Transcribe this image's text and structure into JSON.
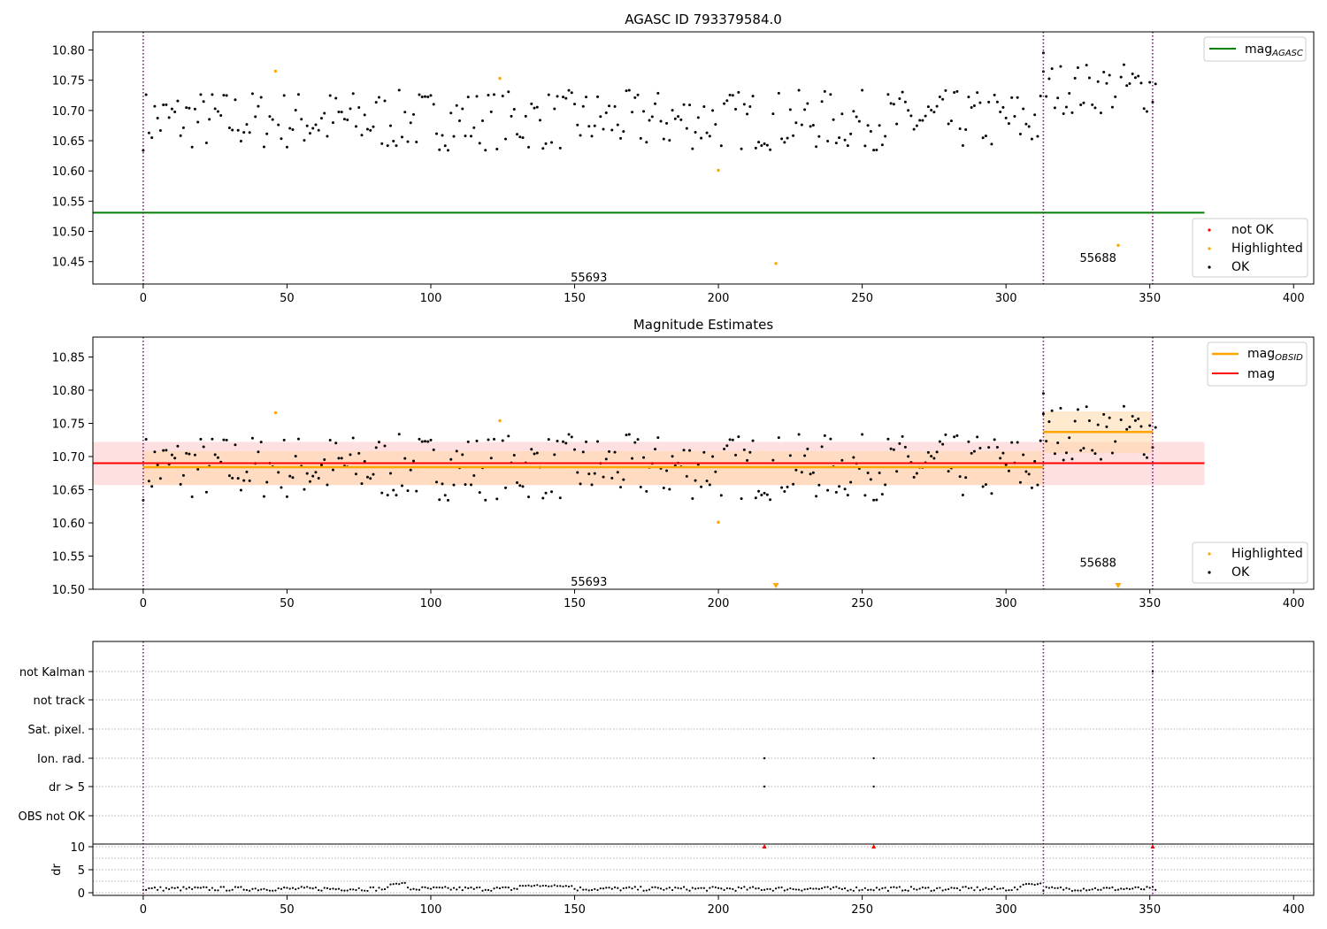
{
  "chart_data": [
    {
      "id": "agasc",
      "type": "scatter",
      "title": "AGASC ID 793379584.0",
      "xlim": [
        -17.5,
        407
      ],
      "ylim": [
        10.413,
        10.83
      ],
      "x_ticks": [
        0,
        50,
        100,
        150,
        200,
        250,
        300,
        350,
        400
      ],
      "y_ticks": [
        10.45,
        10.5,
        10.55,
        10.6,
        10.65,
        10.7,
        10.75,
        10.8
      ],
      "y_tick_labels": [
        "10.45",
        "10.50",
        "10.55",
        "10.60",
        "10.65",
        "10.70",
        "10.75",
        "10.80"
      ],
      "grid": false,
      "obsid_boundaries": [
        0,
        313,
        351
      ],
      "obsid_labels": [
        {
          "text": "55693",
          "x": 155,
          "y": 10.425
        },
        {
          "text": "55688",
          "x": 332,
          "y": 10.457
        }
      ],
      "lines": [
        {
          "name": "mag_AGASC",
          "label_main": "mag",
          "label_sub": "AGASC",
          "y": 10.531,
          "x": [
            -17.5,
            369
          ],
          "color": "#008000"
        }
      ],
      "highlighted": [
        [
          46,
          10.765
        ],
        [
          124,
          10.753
        ],
        [
          200,
          10.601
        ],
        [
          220,
          10.447
        ],
        [
          339,
          10.477
        ]
      ],
      "legend_upper": {
        "placement": "upper right",
        "entries": [
          "mag_AGASC"
        ]
      },
      "legend_lower": {
        "placement": "lower right",
        "entries": [
          "not OK",
          "Highlighted",
          "OK"
        ]
      }
    },
    {
      "id": "estimates",
      "type": "scatter",
      "title": "Magnitude Estimates",
      "xlim": [
        -17.5,
        407
      ],
      "ylim": [
        10.5,
        10.88
      ],
      "x_ticks": [
        0,
        50,
        100,
        150,
        200,
        250,
        300,
        350,
        400
      ],
      "y_ticks": [
        10.5,
        10.55,
        10.6,
        10.65,
        10.7,
        10.75,
        10.8,
        10.85
      ],
      "y_tick_labels": [
        "10.50",
        "10.55",
        "10.60",
        "10.65",
        "10.70",
        "10.75",
        "10.80",
        "10.85"
      ],
      "grid": false,
      "obsid_boundaries": [
        0,
        313,
        351
      ],
      "obsid_labels": [
        {
          "text": "55693",
          "x": 155,
          "y": 10.512
        },
        {
          "text": "55688",
          "x": 332,
          "y": 10.541
        }
      ],
      "mag": {
        "value": 10.69,
        "band": [
          10.657,
          10.722
        ],
        "x": [
          -17.5,
          369
        ],
        "color": "#ff0000"
      },
      "mag_obsid": [
        {
          "x": [
            0,
            313
          ],
          "value": 10.684,
          "band": [
            10.657,
            10.708
          ]
        },
        {
          "x": [
            313,
            351
          ],
          "value": 10.737,
          "band": [
            10.705,
            10.768
          ]
        }
      ],
      "highlighted": [
        [
          46,
          10.766
        ],
        [
          124,
          10.754
        ],
        [
          200,
          10.601
        ]
      ],
      "offscale_markers": [
        220,
        339
      ],
      "legend_upper": {
        "placement": "upper right",
        "entries": [
          "mag_OBSID",
          "mag"
        ]
      },
      "legend_lower": {
        "placement": "lower right",
        "entries": [
          "Highlighted",
          "OK"
        ]
      }
    },
    {
      "id": "flags",
      "type": "scatter",
      "xlim": [
        -17.5,
        407
      ],
      "x_ticks": [
        0,
        50,
        100,
        150,
        200,
        250,
        300,
        350,
        400
      ],
      "categories": [
        "not Kalman",
        "not track",
        "Sat. pixel.",
        "Ion. rad.",
        "dr > 5",
        "OBS not OK"
      ],
      "grid": true,
      "obsid_boundaries": [
        0,
        313,
        351
      ],
      "flag_points": {
        "not Kalman": [
          351
        ],
        "Ion. rad.": [
          216,
          254
        ],
        "dr > 5": [
          216,
          254
        ]
      },
      "dr_panel": {
        "ylabel": "dr",
        "y_ticks": [
          0,
          5,
          10
        ],
        "ylim": [
          -0.5,
          10.5
        ],
        "clipped_markers": [
          216,
          254,
          351
        ]
      }
    }
  ],
  "text": {
    "title1": "AGASC ID 793379584.0",
    "title2": "Magnitude Estimates",
    "mag": "mag",
    "sub_agasc": "AGASC",
    "sub_obsid": "OBSID",
    "not_ok": "not OK",
    "highlighted": "Highlighted",
    "ok": "OK",
    "dr_label": "dr"
  },
  "colors": {
    "ok": "#000000",
    "highlighted": "#ffa500",
    "not_ok": "#ff0000",
    "mag_agasc": "#008000",
    "mag": "#ff0000",
    "mag_obsid": "#ffa500",
    "band_mag": "#ffcccc",
    "band_obsid": "#fff2cc",
    "boundary": "#800080"
  }
}
